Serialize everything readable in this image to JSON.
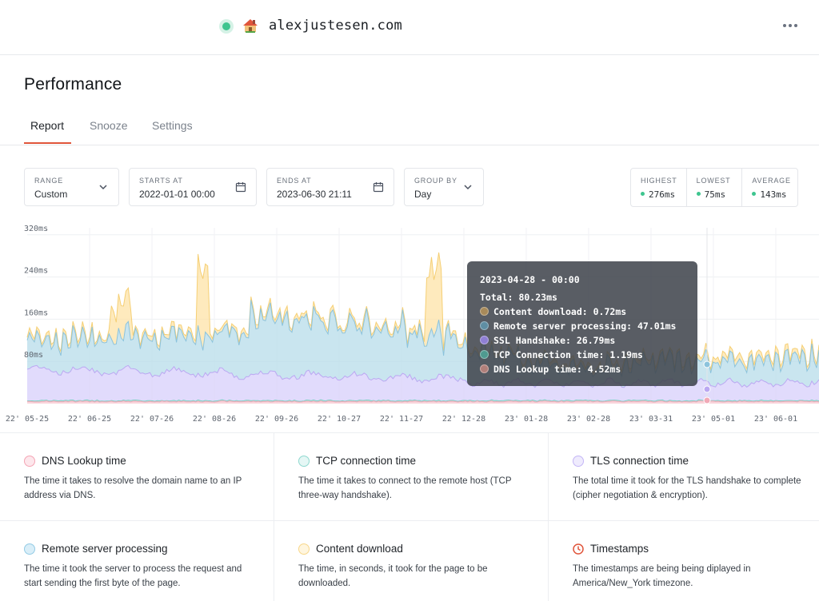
{
  "header": {
    "site_emoji": "🏠",
    "site_name": "alexjustesen.com",
    "more_icon": "more-horizontal-icon"
  },
  "page": {
    "title": "Performance"
  },
  "tabs": [
    {
      "label": "Report",
      "active": true
    },
    {
      "label": "Snooze",
      "active": false
    },
    {
      "label": "Settings",
      "active": false
    }
  ],
  "filters": {
    "range": {
      "label": "RANGE",
      "value": "Custom"
    },
    "starts_at": {
      "label": "STARTS AT",
      "value": "2022-01-01 00:00"
    },
    "ends_at": {
      "label": "ENDS AT",
      "value": "2023-06-30 21:11"
    },
    "group_by": {
      "label": "GROUP BY",
      "value": "Day"
    }
  },
  "stats": {
    "highest": {
      "label": "HIGHEST",
      "value": "276ms"
    },
    "lowest": {
      "label": "LOWEST",
      "value": "75ms"
    },
    "average": {
      "label": "AVERAGE",
      "value": "143ms"
    },
    "dot_color": "#3ec58f"
  },
  "chart_data": {
    "type": "area",
    "stacked": true,
    "y_ticks": [
      "80ms",
      "160ms",
      "240ms",
      "320ms"
    ],
    "y_tick_values": [
      80,
      160,
      240,
      320
    ],
    "ylim": [
      0,
      340
    ],
    "x_ticks": [
      "22' 05-25",
      "22' 06-25",
      "22' 07-26",
      "22' 08-26",
      "22' 09-26",
      "22' 10-27",
      "22' 11-27",
      "22' 12-28",
      "23' 01-28",
      "23' 02-28",
      "23' 03-31",
      "23' 05-01",
      "23' 06-01"
    ],
    "series_colors": {
      "dns": "#f7c6cf",
      "tcp": "#9fdfd5",
      "ssl": "#d7cffb",
      "remote": "#b7dcea",
      "download": "#fde3a7"
    },
    "tooltip": {
      "date": "2023-04-28 - 00:00",
      "total": "Total: 80.23ms",
      "rows": [
        {
          "label": "Content download: 0.72ms",
          "color": "#a88a5a"
        },
        {
          "label": "Remote server processing: 47.01ms",
          "color": "#5f8ea3"
        },
        {
          "label": "SSL Handshake: 26.79ms",
          "color": "#8f7fd4"
        },
        {
          "label": "TCP Connection time: 1.19ms",
          "color": "#4f9a90"
        },
        {
          "label": "DNS Lookup time: 4.52ms",
          "color": "#b07f7a"
        }
      ]
    }
  },
  "legend": [
    {
      "title": "DNS Lookup time",
      "desc": "The time it takes to resolve the domain name to an IP address via DNS.",
      "color": "#fde7ec",
      "border": "#f4a4b4"
    },
    {
      "title": "TCP connection time",
      "desc": "The time it takes to connect to the remote host (TCP three-way handshake).",
      "color": "#e5f7f5",
      "border": "#8fd8cf"
    },
    {
      "title": "TLS connection time",
      "desc": "The total time it took for the TLS handshake to complete (cipher negotiation & encryption).",
      "color": "#efebfd",
      "border": "#c4b6f6"
    },
    {
      "title": "Remote server processing",
      "desc": "The time it took the server to process the request and start sending the first byte of the page.",
      "color": "#d9eef8",
      "border": "#93cbe5"
    },
    {
      "title": "Content download",
      "desc": "The time, in seconds, it took for the page to be downloaded.",
      "color": "#fff6df",
      "border": "#f8d78a"
    },
    {
      "title": "Timestamps",
      "desc": "The timestamps are being being diplayed in America/New_York timezone.",
      "icon": "clock-icon",
      "color": "#e0553b"
    }
  ]
}
